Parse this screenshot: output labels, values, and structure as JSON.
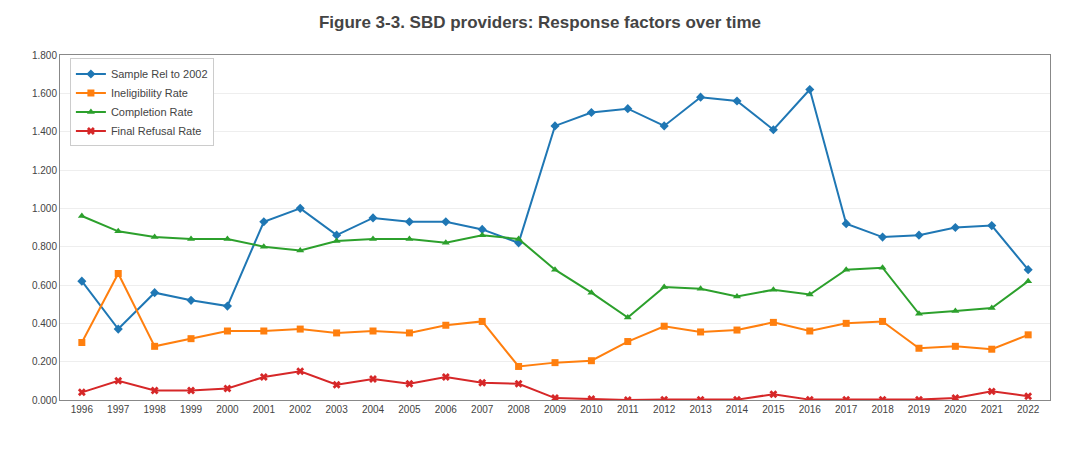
{
  "chart_data": {
    "type": "line",
    "title": "Figure 3-3. SBD providers: Response factors over time",
    "x": [
      1996,
      1997,
      1998,
      1999,
      2000,
      2001,
      2002,
      2003,
      2004,
      2005,
      2006,
      2007,
      2008,
      2009,
      2010,
      2011,
      2012,
      2013,
      2014,
      2015,
      2016,
      2017,
      2018,
      2019,
      2020,
      2021,
      2022
    ],
    "series": [
      {
        "name": "Sample Rel to 2002",
        "marker": "diamond",
        "values": [
          0.62,
          0.37,
          0.56,
          0.52,
          0.49,
          0.93,
          1.0,
          0.86,
          0.95,
          0.93,
          0.93,
          0.89,
          0.82,
          1.43,
          1.5,
          1.52,
          1.43,
          1.58,
          1.56,
          1.41,
          1.62,
          0.92,
          0.85,
          0.86,
          0.9,
          0.91,
          0.68
        ]
      },
      {
        "name": "Ineligibility Rate",
        "marker": "square",
        "values": [
          0.3,
          0.66,
          0.28,
          0.32,
          0.36,
          0.36,
          0.37,
          0.35,
          0.36,
          0.35,
          0.39,
          0.41,
          0.175,
          0.195,
          0.205,
          0.305,
          0.385,
          0.355,
          0.365,
          0.405,
          0.36,
          0.4,
          0.41,
          0.27,
          0.28,
          0.265,
          0.34
        ]
      },
      {
        "name": "Completion Rate",
        "marker": "triangle-up",
        "values": [
          0.96,
          0.88,
          0.85,
          0.84,
          0.84,
          0.8,
          0.78,
          0.83,
          0.84,
          0.84,
          0.82,
          0.86,
          0.84,
          0.68,
          0.56,
          0.43,
          0.59,
          0.58,
          0.54,
          0.575,
          0.55,
          0.68,
          0.69,
          0.45,
          0.465,
          0.48,
          0.62
        ]
      },
      {
        "name": "Final Refusal Rate",
        "marker": "x",
        "values": [
          0.04,
          0.1,
          0.05,
          0.05,
          0.06,
          0.12,
          0.15,
          0.08,
          0.11,
          0.085,
          0.12,
          0.09,
          0.085,
          0.01,
          0.005,
          0.0,
          0.002,
          0.002,
          0.002,
          0.03,
          0.002,
          0.002,
          0.002,
          0.002,
          0.01,
          0.045,
          0.02
        ]
      }
    ],
    "xlim": [
      1995.4,
      2022.6
    ],
    "xticks": [
      1996,
      1997,
      1998,
      1999,
      2000,
      2001,
      2002,
      2003,
      2004,
      2005,
      2006,
      2007,
      2008,
      2009,
      2010,
      2011,
      2012,
      2013,
      2014,
      2015,
      2016,
      2017,
      2018,
      2019,
      2020,
      2021,
      2022
    ],
    "ylim": [
      0.0,
      1.8
    ],
    "yticks": [
      {
        "value": 0.0,
        "label": "0.000"
      },
      {
        "value": 0.2,
        "label": "0.200"
      },
      {
        "value": 0.4,
        "label": "0.400"
      },
      {
        "value": 0.6,
        "label": "0.600"
      },
      {
        "value": 0.8,
        "label": "0.800"
      },
      {
        "value": 1.0,
        "label": "1.000"
      },
      {
        "value": 1.2,
        "label": "1.200"
      },
      {
        "value": 1.4,
        "label": "1.400"
      },
      {
        "value": 1.6,
        "label": "1.600"
      },
      {
        "value": 1.8,
        "label": "1.800"
      }
    ],
    "grid": true,
    "legend": "upper left"
  }
}
